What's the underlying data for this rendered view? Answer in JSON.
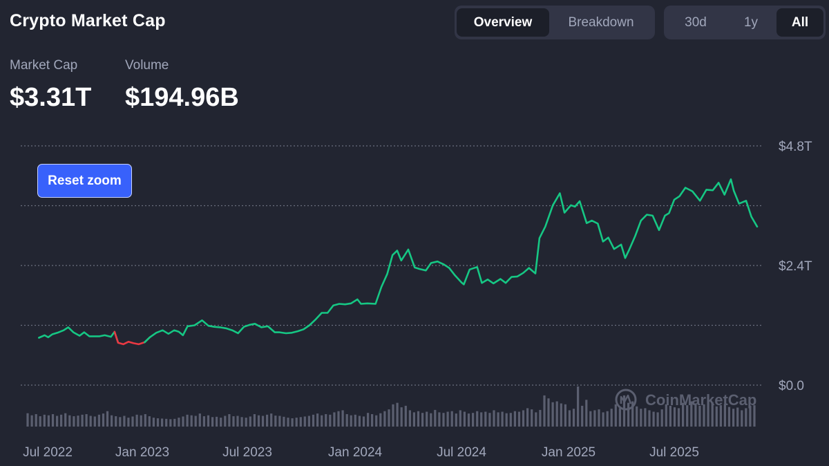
{
  "header": {
    "title": "Crypto Market Cap",
    "view_tabs": [
      {
        "label": "Overview",
        "active": true
      },
      {
        "label": "Breakdown",
        "active": false
      }
    ],
    "range_tabs": [
      {
        "label": "30d",
        "active": false
      },
      {
        "label": "1y",
        "active": false
      },
      {
        "label": "All",
        "active": true
      }
    ]
  },
  "stats": {
    "market_cap_label": "Market Cap",
    "market_cap_value": "$3.31T",
    "volume_label": "Volume",
    "volume_value": "$194.96B"
  },
  "reset_zoom_label": "Reset zoom",
  "watermark": "CoinMarketCap",
  "colors": {
    "background": "#222531",
    "line_up": "#16c784",
    "line_down": "#ea3943",
    "volume_bar": "#5b5f70",
    "accent": "#3861fb"
  },
  "chart_data": {
    "type": "line",
    "series": [
      {
        "x": [
          "2022-06-14",
          "2022-06-25",
          "2022-07-02",
          "2022-07-10",
          "2022-07-20",
          "2022-08-01",
          "2022-08-10",
          "2022-08-20",
          "2022-09-01",
          "2022-09-10",
          "2022-09-20",
          "2022-10-01",
          "2022-10-10",
          "2022-10-20",
          "2022-11-01",
          "2022-11-08",
          "2022-11-15",
          "2022-11-25",
          "2022-12-05",
          "2022-12-15",
          "2022-12-25",
          "2023-01-05",
          "2023-01-14",
          "2023-01-25",
          "2023-02-05",
          "2023-02-15",
          "2023-02-25",
          "2023-03-05",
          "2023-03-12",
          "2023-03-20",
          "2023-04-01",
          "2023-04-14",
          "2023-04-25",
          "2023-05-05",
          "2023-05-15",
          "2023-05-25",
          "2023-06-05",
          "2023-06-15",
          "2023-06-25",
          "2023-07-05",
          "2023-07-14",
          "2023-07-25",
          "2023-08-05",
          "2023-08-17",
          "2023-08-25",
          "2023-09-05",
          "2023-09-15",
          "2023-09-25",
          "2023-10-05",
          "2023-10-15",
          "2023-10-25",
          "2023-11-05",
          "2023-11-15",
          "2023-11-25",
          "2023-12-05",
          "2023-12-15",
          "2023-12-25",
          "2024-01-05",
          "2024-01-11",
          "2024-01-22",
          "2024-02-05",
          "2024-02-15",
          "2024-02-25",
          "2024-03-05",
          "2024-03-13",
          "2024-03-20",
          "2024-04-01",
          "2024-04-12",
          "2024-04-20",
          "2024-05-01",
          "2024-05-10",
          "2024-05-21",
          "2024-06-01",
          "2024-06-10",
          "2024-06-20",
          "2024-07-01",
          "2024-07-05",
          "2024-07-15",
          "2024-07-28",
          "2024-08-05",
          "2024-08-15",
          "2024-08-25",
          "2024-09-06",
          "2024-09-15",
          "2024-09-25",
          "2024-10-05",
          "2024-10-15",
          "2024-10-25",
          "2024-11-05",
          "2024-11-12",
          "2024-11-22",
          "2024-12-05",
          "2024-12-17",
          "2024-12-25",
          "2025-01-05",
          "2025-01-12",
          "2025-01-20",
          "2025-02-01",
          "2025-02-10",
          "2025-02-20",
          "2025-03-01",
          "2025-03-10",
          "2025-03-20",
          "2025-04-01",
          "2025-04-08",
          "2025-04-15",
          "2025-04-25",
          "2025-05-05",
          "2025-05-15",
          "2025-05-25",
          "2025-06-05",
          "2025-06-15",
          "2025-06-22",
          "2025-07-01",
          "2025-07-10",
          "2025-07-20",
          "2025-08-01",
          "2025-08-14",
          "2025-08-25",
          "2025-09-05",
          "2025-09-15",
          "2025-09-25",
          "2025-10-06",
          "2025-10-11",
          "2025-10-20",
          "2025-11-01",
          "2025-11-10",
          "2025-11-20"
        ],
        "y": [
          0.95,
          1.0,
          0.96,
          1.02,
          1.05,
          1.1,
          1.16,
          1.06,
          0.99,
          1.06,
          0.98,
          0.98,
          0.98,
          1.0,
          0.97,
          1.07,
          0.85,
          0.82,
          0.87,
          0.84,
          0.82,
          0.86,
          0.96,
          1.05,
          1.1,
          1.03,
          1.1,
          1.07,
          1.0,
          1.18,
          1.2,
          1.3,
          1.19,
          1.17,
          1.16,
          1.14,
          1.1,
          1.04,
          1.17,
          1.21,
          1.23,
          1.16,
          1.18,
          1.06,
          1.06,
          1.04,
          1.05,
          1.08,
          1.12,
          1.2,
          1.31,
          1.45,
          1.45,
          1.6,
          1.63,
          1.62,
          1.64,
          1.72,
          1.63,
          1.64,
          1.63,
          1.97,
          2.23,
          2.61,
          2.7,
          2.5,
          2.72,
          2.36,
          2.33,
          2.3,
          2.45,
          2.48,
          2.42,
          2.35,
          2.2,
          2.06,
          2.02,
          2.32,
          2.37,
          2.05,
          2.12,
          2.04,
          2.13,
          2.05,
          2.17,
          2.18,
          2.25,
          2.35,
          2.24,
          2.95,
          3.18,
          3.61,
          3.85,
          3.46,
          3.61,
          3.58,
          3.69,
          3.25,
          3.3,
          3.24,
          2.88,
          2.96,
          2.73,
          2.82,
          2.55,
          2.72,
          2.99,
          3.3,
          3.42,
          3.4,
          3.11,
          3.4,
          3.45,
          3.72,
          3.79,
          3.96,
          3.89,
          3.7,
          3.92,
          3.91,
          4.06,
          3.82,
          4.13,
          3.9,
          3.64,
          3.7,
          3.38,
          3.18
        ]
      }
    ],
    "y_ticks": [
      "$4.8T",
      "$2.4T",
      "$0.0"
    ],
    "ylim": [
      0,
      4.8
    ],
    "y_unit": "trillion USD",
    "x_ticks": [
      "Jul 2022",
      "Jan 2023",
      "Jul 2023",
      "Jan 2024",
      "Jul 2024",
      "Jan 2025",
      "Jul 2025"
    ],
    "grid": true,
    "volume_bars": [
      0.45,
      0.38,
      0.42,
      0.35,
      0.4,
      0.38,
      0.42,
      0.36,
      0.4,
      0.45,
      0.38,
      0.35,
      0.37,
      0.4,
      0.42,
      0.36,
      0.34,
      0.4,
      0.44,
      0.52,
      0.38,
      0.35,
      0.32,
      0.36,
      0.3,
      0.34,
      0.4,
      0.38,
      0.42,
      0.35,
      0.3,
      0.28,
      0.27,
      0.26,
      0.25,
      0.26,
      0.3,
      0.34,
      0.4,
      0.38,
      0.36,
      0.44,
      0.35,
      0.38,
      0.32,
      0.33,
      0.3,
      0.36,
      0.42,
      0.35,
      0.36,
      0.32,
      0.3,
      0.34,
      0.42,
      0.38,
      0.36,
      0.4,
      0.44,
      0.37,
      0.36,
      0.33,
      0.3,
      0.28,
      0.3,
      0.32,
      0.34,
      0.36,
      0.4,
      0.44,
      0.38,
      0.42,
      0.4,
      0.48,
      0.52,
      0.55,
      0.42,
      0.38,
      0.4,
      0.36,
      0.34,
      0.46,
      0.42,
      0.38,
      0.45,
      0.52,
      0.58,
      0.75,
      0.8,
      0.65,
      0.7,
      0.55,
      0.48,
      0.52,
      0.46,
      0.5,
      0.45,
      0.56,
      0.48,
      0.46,
      0.5,
      0.52,
      0.44,
      0.55,
      0.5,
      0.44,
      0.46,
      0.52,
      0.48,
      0.5,
      0.46,
      0.55,
      0.48,
      0.5,
      0.45,
      0.46,
      0.52,
      0.5,
      0.55,
      0.62,
      0.58,
      0.48,
      0.56,
      1.05,
      0.95,
      0.82,
      0.85,
      0.78,
      0.75,
      0.55,
      0.6,
      1.35,
      0.7,
      0.9,
      0.52,
      0.55,
      0.58,
      0.48,
      0.52,
      0.6,
      0.75,
      0.62,
      1.05,
      0.8,
      0.85,
      0.68,
      0.6,
      0.62,
      0.55,
      0.5,
      0.48,
      0.58,
      0.75,
      0.7,
      0.65,
      0.62,
      0.8,
      0.72,
      0.85,
      0.78,
      0.7,
      0.75,
      0.9,
      0.82,
      0.68,
      0.72,
      0.76,
      0.66,
      0.6,
      0.64,
      0.55,
      0.62,
      0.7,
      0.72
    ]
  }
}
